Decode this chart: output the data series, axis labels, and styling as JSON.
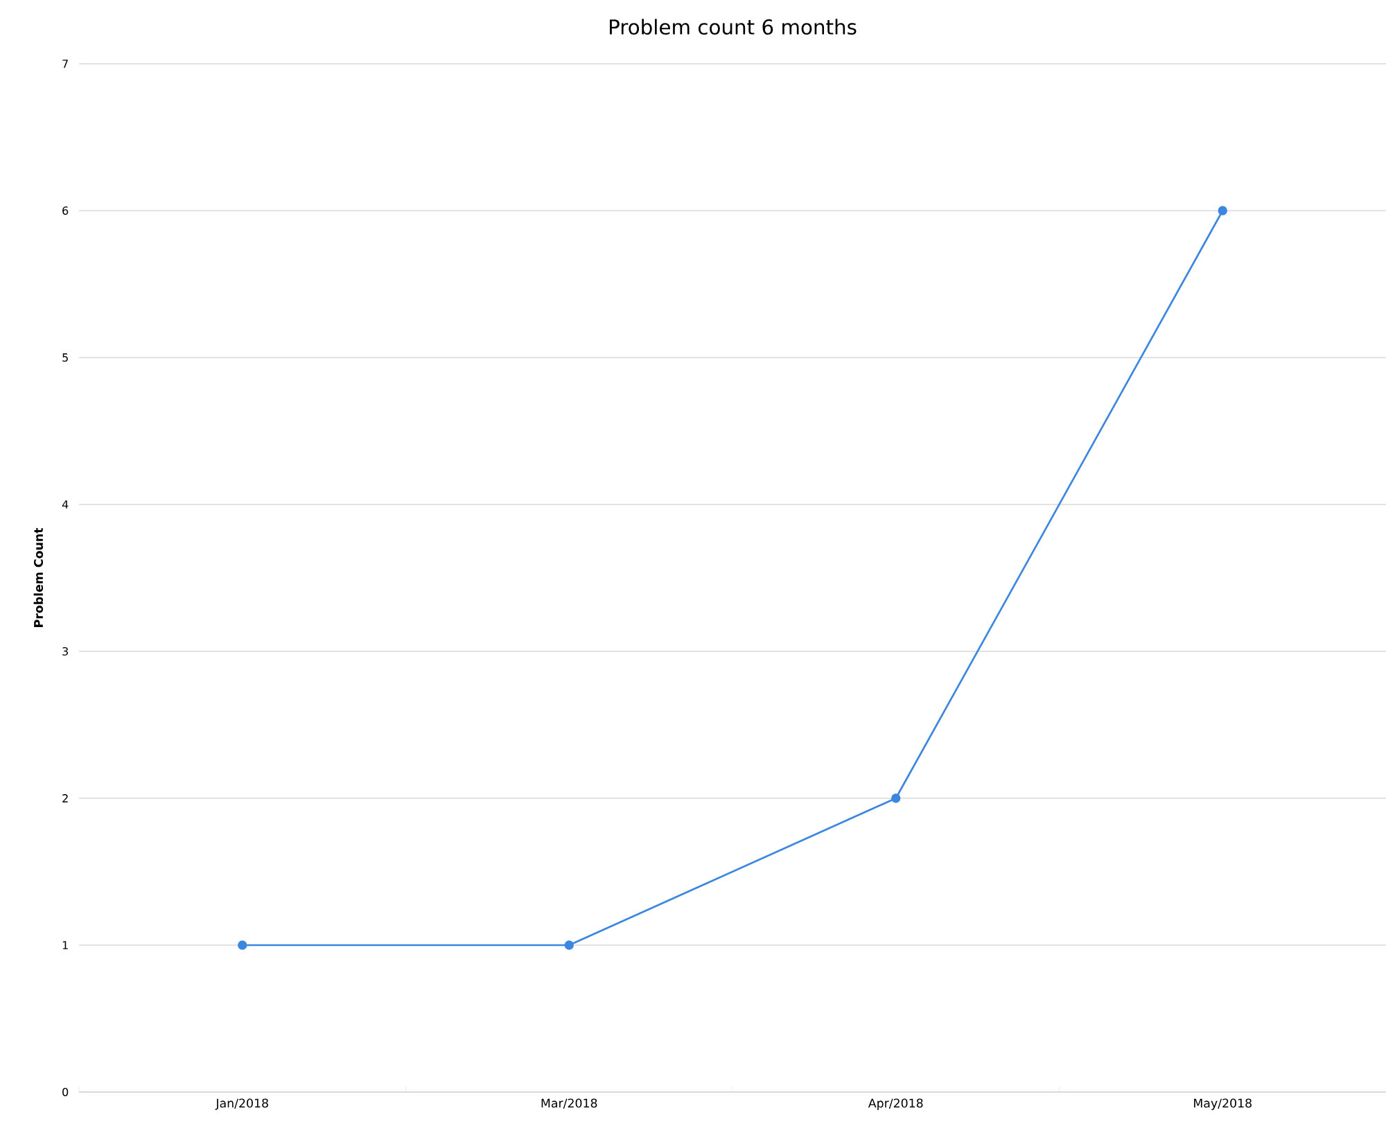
{
  "chart_data": {
    "type": "line",
    "title": "Problem count 6 months",
    "ylabel": "Problem Count",
    "categories": [
      "Jan/2018",
      "Mar/2018",
      "Apr/2018",
      "May/2018"
    ],
    "series": [
      {
        "color": "#3a86e0",
        "values": [
          1,
          1,
          2,
          6
        ]
      }
    ],
    "ylim": [
      0,
      7
    ],
    "yticks": [
      0,
      1,
      2,
      3,
      4,
      5,
      6,
      7
    ],
    "grid": "y",
    "marker": "circle",
    "line_style": "solid"
  }
}
